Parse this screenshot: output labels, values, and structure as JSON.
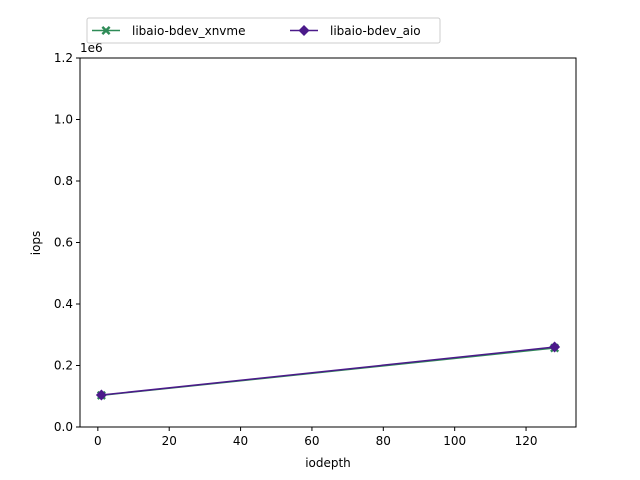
{
  "chart_data": {
    "type": "line",
    "title": "",
    "xlabel": "iodepth",
    "ylabel": "iops",
    "y_offset_text": "1e6",
    "x_ticks": [
      0,
      20,
      40,
      60,
      80,
      100,
      120
    ],
    "y_ticks": [
      0.0,
      0.2,
      0.4,
      0.6,
      0.8,
      1.0,
      1.2
    ],
    "y_tick_labels": [
      "0.0",
      "0.2",
      "0.4",
      "0.6",
      "0.8",
      "1.0",
      "1.2"
    ],
    "xlim": [
      -5,
      134
    ],
    "ylim": [
      0,
      1200000
    ],
    "grid": false,
    "legend_position": "top-left, above plot",
    "series": [
      {
        "name": "libaio-bdev_xnvme",
        "color": "#2e8b57",
        "marker": "x-filled",
        "x": [
          1,
          128
        ],
        "y": [
          103000,
          257000
        ]
      },
      {
        "name": "libaio-bdev_aio",
        "color": "#4b1a8a",
        "marker": "diamond",
        "x": [
          1,
          128
        ],
        "y": [
          104000,
          260000
        ]
      }
    ]
  }
}
